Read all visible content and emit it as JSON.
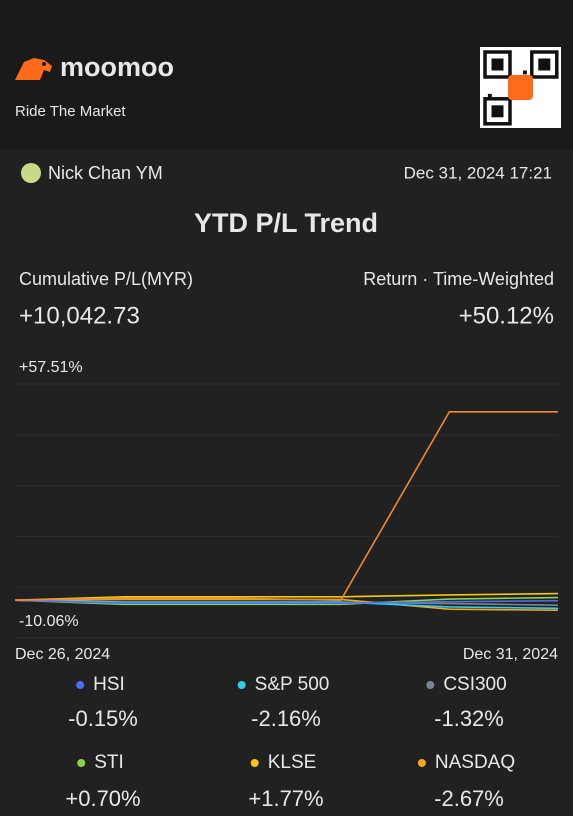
{
  "header": {
    "brand": "moomoo",
    "tagline": "Ride The Market"
  },
  "user": {
    "name": "Nick Chan YM",
    "timestamp": "Dec 31, 2024 17:21"
  },
  "title": "YTD P/L Trend",
  "summary": {
    "pl_label": "Cumulative P/L(MYR)",
    "pl_value": "+10,042.73",
    "return_label": "Return · Time-Weighted",
    "return_value": "+50.12%"
  },
  "chart_data": {
    "type": "line",
    "categories": [
      "Dec 26, 2024",
      null,
      null,
      null,
      null,
      "Dec 31, 2024"
    ],
    "ylim": [
      -10.06,
      57.51
    ],
    "yticks": [
      {
        "value": 57.51,
        "label": "+57.51%"
      },
      {
        "value": -10.06,
        "label": "-10.06%"
      }
    ],
    "grid": true,
    "colors": {
      "up": "#1fb872",
      "down": "#f0455a"
    },
    "series": [
      {
        "color": "#f28a2e",
        "values": [
          0,
          0.5,
          0.5,
          0,
          50.12,
          50.12
        ]
      },
      {
        "name": "HSI",
        "color": "#4f6ef7",
        "values": [
          0,
          -0.8,
          -0.8,
          -0.8,
          -0.4,
          -0.15
        ],
        "value_labels": [
          null,
          null,
          null,
          null,
          null,
          "-0.15%"
        ]
      },
      {
        "name": "S&P 500",
        "color": "#2fd0e8",
        "values": [
          0,
          -0.5,
          -0.5,
          -0.5,
          -1.8,
          -2.16
        ],
        "value_labels": [
          null,
          null,
          null,
          null,
          null,
          "-2.16%"
        ]
      },
      {
        "name": "CSI300",
        "color": "#7a8497",
        "values": [
          0,
          -0.6,
          -0.6,
          -0.6,
          -0.9,
          -1.32
        ],
        "value_labels": [
          null,
          null,
          null,
          null,
          null,
          "-1.32%"
        ]
      },
      {
        "name": "STI",
        "color": "#8bd44a",
        "values": [
          0,
          -1.1,
          -1.1,
          -1.1,
          0.3,
          0.7
        ],
        "value_labels": [
          null,
          null,
          null,
          null,
          null,
          "+0.70%"
        ]
      },
      {
        "name": "KLSE",
        "color": "#f5c518",
        "values": [
          0,
          0.9,
          0.9,
          0.9,
          1.4,
          1.77
        ],
        "value_labels": [
          null,
          null,
          null,
          null,
          null,
          "+1.77%"
        ]
      },
      {
        "name": "NASDAQ",
        "color": "#f5a623",
        "values": [
          0,
          0.2,
          0.2,
          0.2,
          -2.4,
          -2.67
        ],
        "value_labels": [
          null,
          null,
          null,
          null,
          null,
          "-2.67%"
        ]
      }
    ]
  }
}
